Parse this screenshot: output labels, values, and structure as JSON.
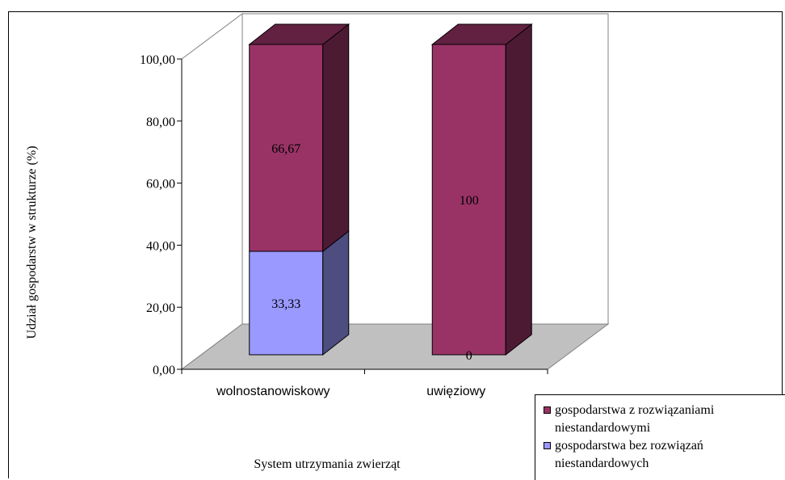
{
  "chart_data": {
    "type": "bar",
    "stacked": true,
    "three_d": true,
    "categories": [
      "wolnostanowiskowy",
      "uwięziowy"
    ],
    "series": [
      {
        "name": "gospodarstwa bez rozwiązań niestandardowych",
        "values": [
          33.33,
          0
        ],
        "labels": [
          "33,33",
          "0"
        ],
        "color": "#9999ff"
      },
      {
        "name": "gospodarstwa z rozwiązaniami niestandardowymi",
        "values": [
          66.67,
          100
        ],
        "labels": [
          "66,67",
          "100"
        ],
        "color": "#993366"
      }
    ],
    "y_ticks": [
      "0,00",
      "20,00",
      "40,00",
      "60,00",
      "80,00",
      "100,00"
    ],
    "ylim": [
      0,
      100
    ],
    "ylabel": "Udział gospodarstw w strukturze (%)",
    "xlabel": "System utrzymania zwierząt",
    "legend_position": "bottom-right",
    "floor_color": "#c0c0c0",
    "grid": false
  }
}
